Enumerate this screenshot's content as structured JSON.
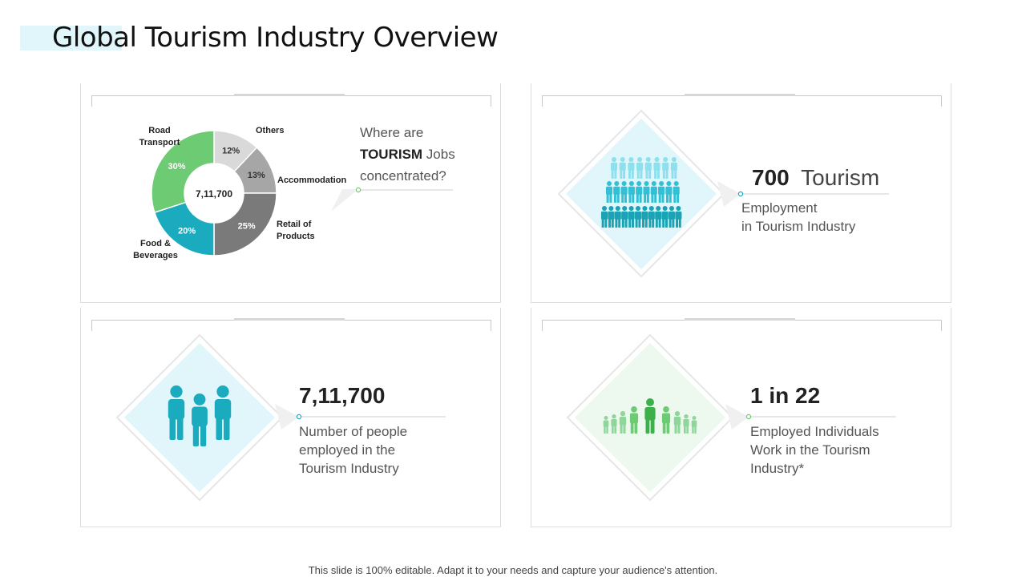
{
  "title": "Global Tourism Industry Overview",
  "footer": "This slide is 100% editable. Adapt it to your needs and capture your audience's attention.",
  "colors": {
    "road_transport": "#6ccb73",
    "others": "#d9d9d9",
    "accommodation": "#a6a6a6",
    "retail": "#7a7a7a",
    "food_beverages": "#1aabbf",
    "teal": "#1aabbf",
    "light_teal": "#e0f6fb",
    "green": "#6ccb73",
    "light_green": "#edf8ee"
  },
  "panel_jobs": {
    "question_line1": "Where are",
    "question_bold": "TOURISM",
    "question_rest": " Jobs",
    "question_line3": "concentrated?",
    "center_label": "7,11,700"
  },
  "chart_data": {
    "type": "pie",
    "center_label": "7,11,700",
    "categories": [
      "Others",
      "Accommodation",
      "Retail of Products",
      "Food & Beverages",
      "Road Transport"
    ],
    "values": [
      12,
      13,
      25,
      20,
      30
    ],
    "value_labels": [
      "12%",
      "13%",
      "25%",
      "20%",
      "30%"
    ],
    "label_lines": [
      [
        "Others"
      ],
      [
        "Accommodation"
      ],
      [
        "Retail of",
        "Products"
      ],
      [
        "Food &",
        "Beverages"
      ],
      [
        "Road",
        "Transport"
      ]
    ]
  },
  "panel_employment": {
    "number": "700",
    "word": "Tourism",
    "desc_line1": "Employment",
    "desc_line2": "in Tourism Industry",
    "icon": "people-crowd-icon"
  },
  "panel_people": {
    "number": "7,11,700",
    "desc_line1": "Number of people",
    "desc_line2": "employed in the",
    "desc_line3": "Tourism Industry",
    "icon": "business-people-icon"
  },
  "panel_ratio": {
    "number": "1 in 22",
    "desc_line1": "Employed Individuals",
    "desc_line2": "Work in the Tourism",
    "desc_line3": "Industry*",
    "icon": "people-group-icon"
  }
}
